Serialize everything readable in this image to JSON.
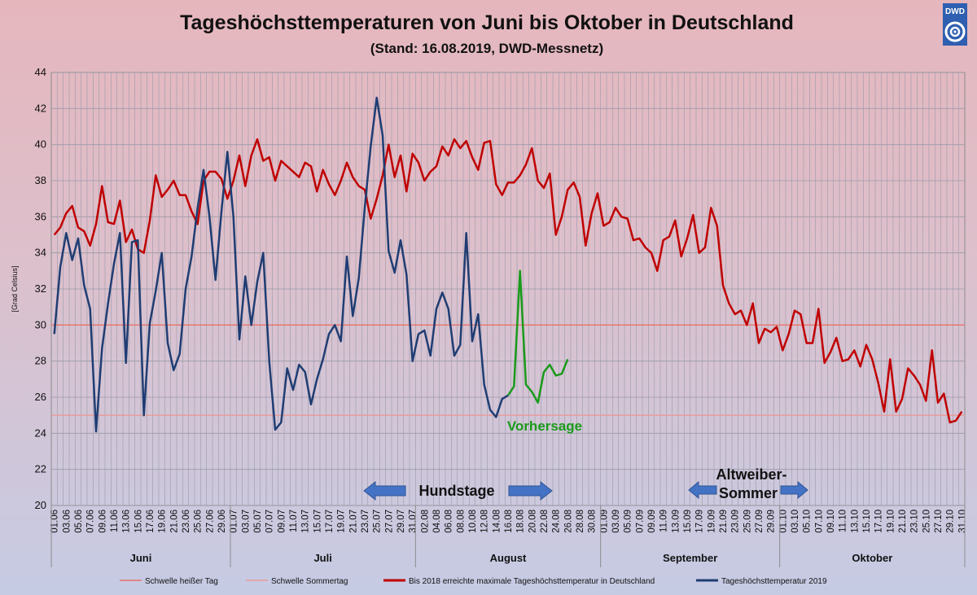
{
  "logo": {
    "text": "DWD",
    "color": "#2f5fb0"
  },
  "chart_data": {
    "type": "line",
    "title": "Tageshöchsttemperaturen von Juni bis Oktober in Deutschland",
    "subtitle": "(Stand: 16.08.2019, DWD-Messnetz)",
    "ylabel": "[Grad Celsius]",
    "xlabel": "",
    "ylim": [
      20,
      44
    ],
    "yticks": [
      20,
      22,
      24,
      26,
      28,
      30,
      32,
      34,
      36,
      38,
      40,
      42,
      44
    ],
    "grid": true,
    "legend_position": "bottom",
    "day_count": 153,
    "x_tick_labels": [
      "01.06",
      "03.06",
      "05.06",
      "07.06",
      "09.06",
      "11.06",
      "13.06",
      "15.06",
      "17.06",
      "19.06",
      "21.06",
      "23.06",
      "25.06",
      "27.06",
      "29.06",
      "01.07",
      "03.07",
      "05.07",
      "07.07",
      "09.07",
      "11.07",
      "13.07",
      "15.07",
      "17.07",
      "19.07",
      "21.07",
      "23.07",
      "25.07",
      "27.07",
      "29.07",
      "31.07",
      "02.08",
      "04.08",
      "06.08",
      "08.08",
      "10.08",
      "12.08",
      "14.08",
      "16.08",
      "18.08",
      "20.08",
      "22.08",
      "24.08",
      "26.08",
      "28.08",
      "30.08",
      "01.09",
      "03.09",
      "05.09",
      "07.09",
      "09.09",
      "11.09",
      "13.09",
      "15.09",
      "17.09",
      "19.09",
      "21.09",
      "23.09",
      "25.09",
      "27.09",
      "29.09",
      "01.10",
      "03.10",
      "05.10",
      "07.10",
      "09.10",
      "11.10",
      "13.10",
      "15.10",
      "17.10",
      "19.10",
      "21.10",
      "23.10",
      "25.10",
      "27.10",
      "29.10",
      "31.10"
    ],
    "months": [
      {
        "name": "Juni",
        "days": 30
      },
      {
        "name": "Juli",
        "days": 31
      },
      {
        "name": "August",
        "days": 31
      },
      {
        "name": "September",
        "days": 30
      },
      {
        "name": "Oktober",
        "days": 31
      }
    ],
    "thresholds": [
      {
        "name": "Schwelle heißer Tag",
        "value": 30,
        "color": "#e8736a"
      },
      {
        "name": "Schwelle Sommertag",
        "value": 25,
        "color": "#e89a98"
      }
    ],
    "series": [
      {
        "name": "Bis 2018 erreichte maximale Tageshöchsttemperatur in Deutschland",
        "color": "#c00000",
        "start_date": "01.06",
        "values": [
          35,
          35.4,
          36.2,
          36.6,
          35.4,
          35.2,
          34.4,
          35.6,
          37.7,
          35.7,
          35.6,
          36.9,
          34.6,
          35.3,
          34.2,
          34,
          35.8,
          38.3,
          37.1,
          37.5,
          38,
          37.2,
          37.2,
          36.3,
          35.6,
          38,
          38.5,
          38.5,
          38.1,
          37,
          38,
          39.4,
          37.7,
          39.4,
          40.3,
          39.1,
          39.3,
          38,
          39.1,
          38.8,
          38.5,
          38.2,
          39,
          38.8,
          37.4,
          38.6,
          37.8,
          37.2,
          38,
          39,
          38.2,
          37.7,
          37.5,
          35.9,
          37,
          38.3,
          40,
          38.2,
          39.4,
          37.4,
          39.5,
          39,
          38,
          38.5,
          38.8,
          39.9,
          39.4,
          40.3,
          39.8,
          40.2,
          39.3,
          38.6,
          40.1,
          40.2,
          37.8,
          37.2,
          37.9,
          37.9,
          38.3,
          38.9,
          39.8,
          38,
          37.6,
          38.4,
          35,
          36,
          37.5,
          37.9,
          37.1,
          34.4,
          36.2,
          37.3,
          35.5,
          35.7,
          36.5,
          36,
          35.9,
          34.7,
          34.8,
          34.3,
          34,
          33,
          34.7,
          34.9,
          35.8,
          33.8,
          34.8,
          36.1,
          34,
          34.3,
          36.5,
          35.5,
          32.2,
          31.2,
          30.6,
          30.8,
          30,
          31.2,
          29,
          29.8,
          29.6,
          29.9,
          28.6,
          29.5,
          30.8,
          30.6,
          29,
          29,
          30.9,
          27.9,
          28.5,
          29.3,
          28,
          28.1,
          28.6,
          27.7,
          28.9,
          28.1,
          26.8,
          25.2,
          28.1,
          25.2,
          25.9,
          27.6,
          27.2,
          26.7,
          25.8,
          28.6,
          25.7,
          26.2,
          24.6,
          24.7,
          25.2
        ]
      },
      {
        "name": "Tageshöchsttemperatur 2019",
        "color": "#1f3d73",
        "start_date": "01.06",
        "values": [
          29.5,
          33.2,
          35.1,
          33.6,
          34.8,
          32.2,
          30.9,
          24.1,
          28.7,
          31.2,
          33.4,
          35.1,
          27.9,
          34.6,
          34.7,
          25,
          30.1,
          31.9,
          34,
          29,
          27.5,
          28.4,
          32,
          33.8,
          36.5,
          38.6,
          36,
          32.5,
          36.3,
          39.6,
          36,
          29.2,
          32.7,
          30,
          32.4,
          34,
          28,
          24.2,
          24.6,
          27.6,
          26.4,
          27.8,
          27.4,
          25.6,
          27,
          28.1,
          29.5,
          30,
          29.1,
          33.8,
          30.5,
          32.6,
          36.5,
          39.9,
          42.6,
          40.5,
          34.1,
          32.9,
          34.7,
          32.8,
          28,
          29.5,
          29.7,
          28.3,
          30.9,
          31.8,
          30.9,
          28.3,
          28.9,
          35.1,
          29.1,
          30.6,
          26.7,
          25.3,
          24.9,
          25.9,
          26.1
        ]
      },
      {
        "name": "Vorhersage",
        "color": "#1a9a1a",
        "start_date": "16.08",
        "values": [
          26.1,
          26.6,
          33,
          26.7,
          26.3,
          25.7,
          27.4,
          27.8,
          27.2,
          27.3,
          28.1
        ]
      }
    ],
    "annotations": [
      {
        "text": "Vorhersage",
        "color": "#1a9a1a"
      },
      {
        "text": "Hundstage"
      },
      {
        "text": "Altweiber-"
      },
      {
        "text": "Sommer"
      }
    ]
  }
}
